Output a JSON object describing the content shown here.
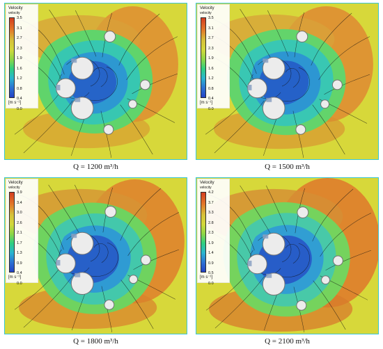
{
  "legend": {
    "title": "Velocity",
    "subtitle": "velocity",
    "unit": "[m s⁻¹]"
  },
  "panels": [
    {
      "caption": "Q = 1200 m³/h",
      "ticks": [
        "3.5",
        "3.1",
        "2.7",
        "2.3",
        "1.9",
        "1.6",
        "1.2",
        "0.8",
        "0.4",
        "0.0"
      ]
    },
    {
      "caption": "Q = 1500 m³/h",
      "ticks": [
        "3.5",
        "3.1",
        "2.7",
        "2.3",
        "1.9",
        "1.6",
        "1.2",
        "0.8",
        "0.4",
        "0.0"
      ]
    },
    {
      "caption": "Q = 1800 m³/h",
      "ticks": [
        "3.9",
        "3.4",
        "3.0",
        "2.6",
        "2.1",
        "1.7",
        "1.3",
        "0.9",
        "0.4",
        "0.0"
      ]
    },
    {
      "caption": "Q = 2100 m³/h",
      "ticks": [
        "4.2",
        "3.7",
        "3.3",
        "2.8",
        "2.3",
        "1.9",
        "1.4",
        "0.9",
        "0.5",
        "0.0"
      ]
    }
  ]
}
